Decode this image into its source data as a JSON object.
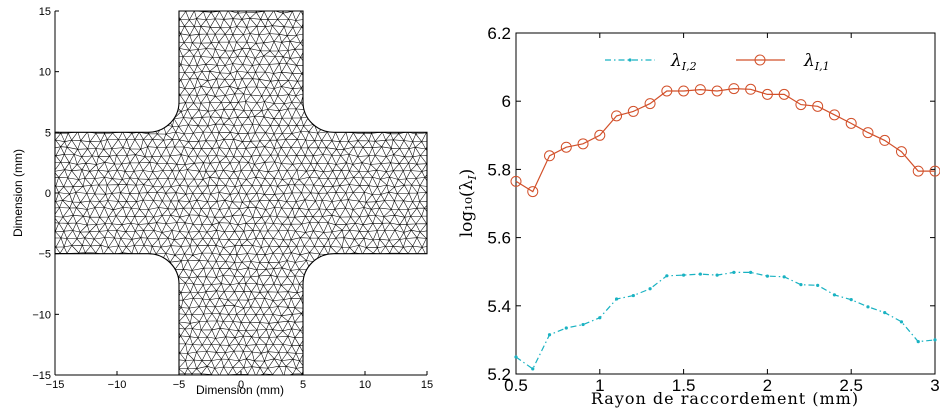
{
  "chart_data": [
    {
      "type": "mesh",
      "xlabel": "Dimension (mm)",
      "ylabel": "Dimension (mm)",
      "xlim": [
        -15,
        15
      ],
      "ylim": [
        -15,
        15
      ],
      "xticks": [
        "−15",
        "−10",
        "−5",
        "0",
        "5",
        "10",
        "15"
      ],
      "yticks": [
        "15",
        "10",
        "5",
        "0",
        "−5",
        "−10",
        "−15"
      ],
      "shape": {
        "arm_half_width": 5,
        "arm_length": 15,
        "fillet_radius": 2.5,
        "fillet_centers": [
          [
            -5,
            5
          ],
          [
            5,
            5
          ],
          [
            -5,
            -5
          ],
          [
            5,
            -5
          ]
        ]
      },
      "element_size": 0.72,
      "mesh_color": "#000000"
    },
    {
      "type": "line",
      "xlabel": "Rayon de raccordement (mm)",
      "ylabel": "log₁₀(λ",
      "ylabel_sub": "I",
      "ylabel_close": ")",
      "xlim": [
        0.5,
        3
      ],
      "ylim": [
        5.2,
        6.2
      ],
      "xticks": [
        "0.5",
        "1",
        "1.5",
        "2",
        "2.5",
        "3"
      ],
      "yticks": [
        "5.2",
        "5.4",
        "5.6",
        "5.8",
        "6",
        "6.2"
      ],
      "x": [
        0.5,
        0.6,
        0.7,
        0.8,
        0.9,
        1.0,
        1.1,
        1.2,
        1.3,
        1.4,
        1.5,
        1.6,
        1.7,
        1.8,
        1.9,
        2.0,
        2.1,
        2.2,
        2.3,
        2.4,
        2.5,
        2.6,
        2.7,
        2.8,
        2.9,
        3.0
      ],
      "series": [
        {
          "name_main": "λ",
          "name_sub": "I,2",
          "color": "#19b2c2",
          "style": "dashdot",
          "marker": "point",
          "values": [
            5.25,
            5.215,
            5.315,
            5.335,
            5.345,
            5.365,
            5.42,
            5.43,
            5.45,
            5.488,
            5.49,
            5.493,
            5.49,
            5.498,
            5.498,
            5.487,
            5.485,
            5.462,
            5.46,
            5.432,
            5.418,
            5.397,
            5.38,
            5.353,
            5.295,
            5.3
          ]
        },
        {
          "name_main": "λ",
          "name_sub": "I,1",
          "color": "#d2502a",
          "style": "solid",
          "marker": "circle",
          "values": [
            5.765,
            5.735,
            5.84,
            5.865,
            5.875,
            5.9,
            5.957,
            5.97,
            5.993,
            6.03,
            6.03,
            6.034,
            6.03,
            6.037,
            6.035,
            6.02,
            6.02,
            5.99,
            5.985,
            5.96,
            5.935,
            5.908,
            5.885,
            5.852,
            5.795,
            5.795
          ]
        }
      ],
      "legend": "top"
    }
  ]
}
